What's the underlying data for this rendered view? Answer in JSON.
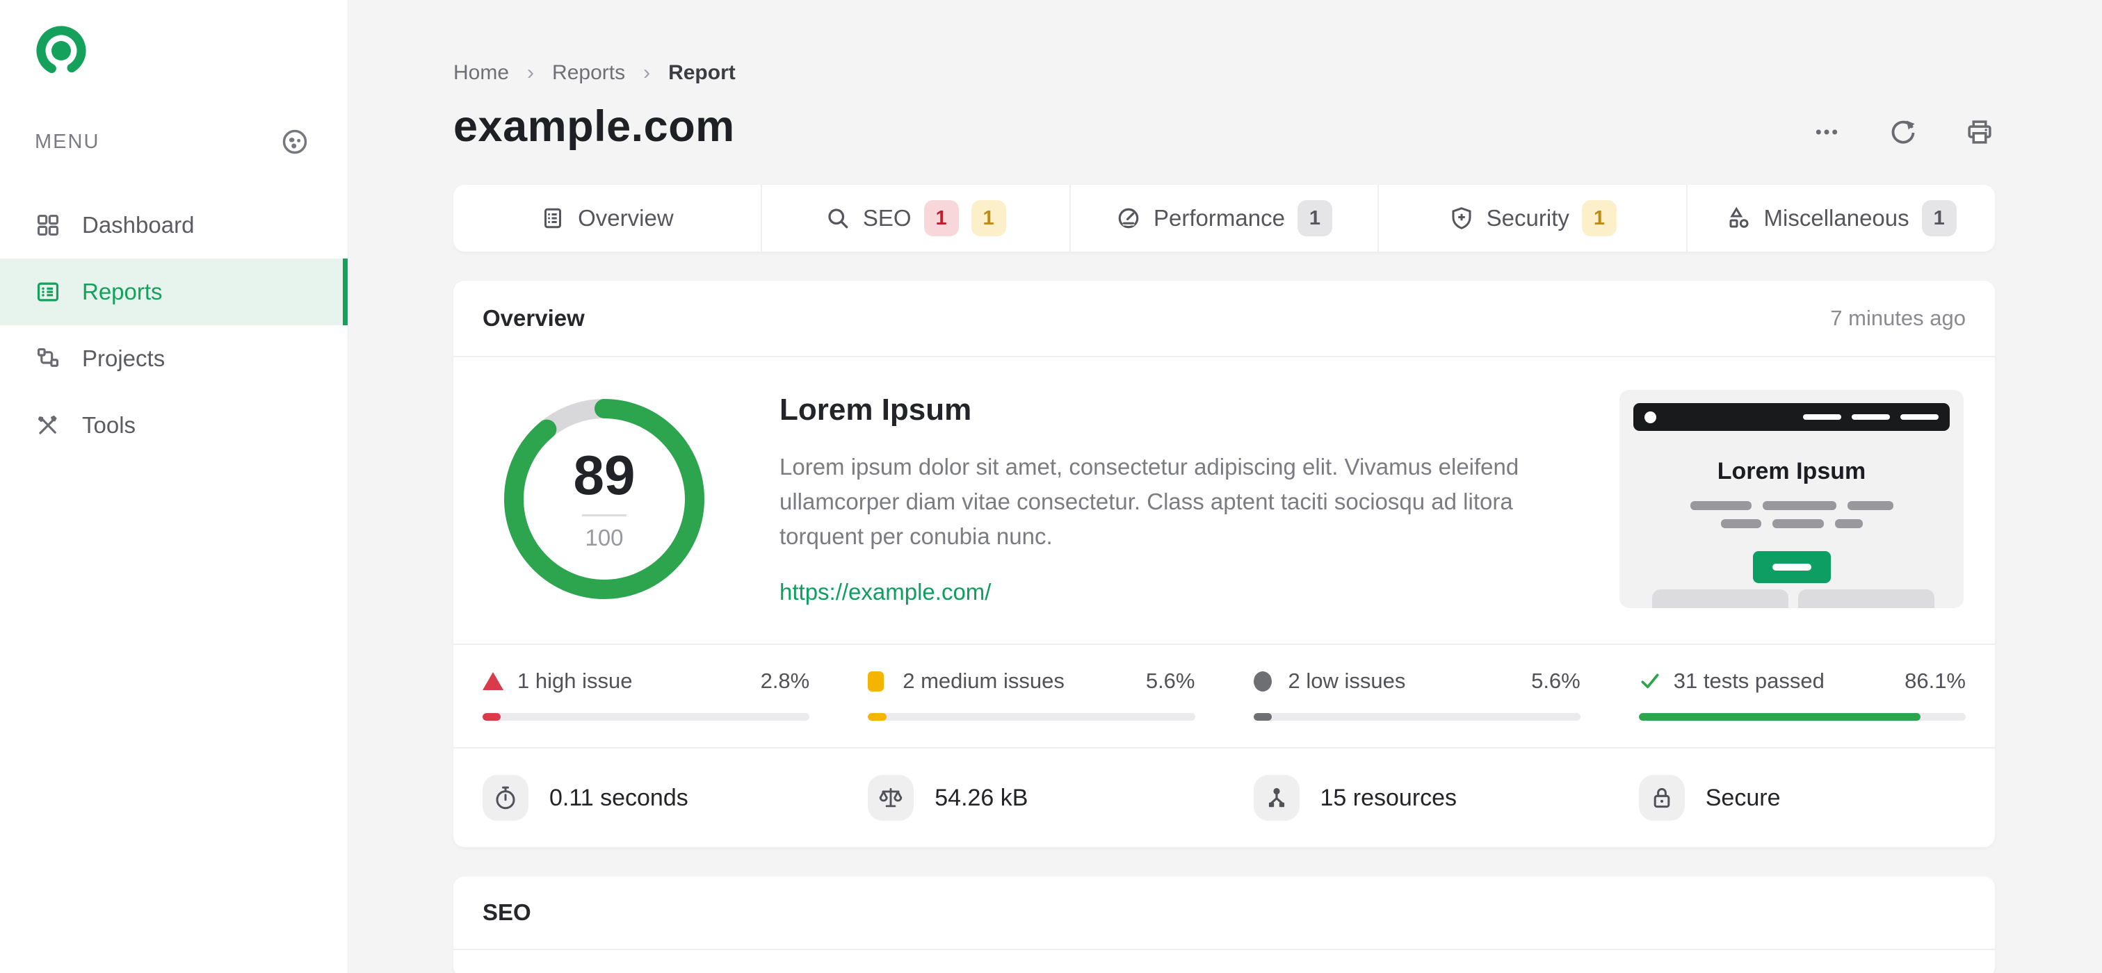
{
  "colors": {
    "brand_green": "#13a15b",
    "ring_green": "#2da44e",
    "link_green": "#0d9e60",
    "high_red": "#d93b4a",
    "medium_yellow": "#f5b400",
    "low_gray": "#6e6f73",
    "page_bg": "#f4f4f5",
    "active_item_bg": "#e7f3ed"
  },
  "sidebar": {
    "menu_label": "MENU",
    "items": [
      {
        "label": "Dashboard",
        "icon": "dashboard-grid-icon",
        "active": false
      },
      {
        "label": "Reports",
        "icon": "reports-list-icon",
        "active": true
      },
      {
        "label": "Projects",
        "icon": "projects-sitemap-icon",
        "active": false
      },
      {
        "label": "Tools",
        "icon": "tools-icon",
        "active": false
      }
    ]
  },
  "breadcrumb": {
    "items": [
      "Home",
      "Reports",
      "Report"
    ],
    "separator": "›"
  },
  "header": {
    "title": "example.com",
    "actions": [
      {
        "name": "more-options",
        "icon": "ellipsis-icon"
      },
      {
        "name": "refresh",
        "icon": "refresh-icon"
      },
      {
        "name": "print",
        "icon": "printer-icon"
      }
    ]
  },
  "tabs": [
    {
      "label": "Overview",
      "icon": "report-icon",
      "badges": []
    },
    {
      "label": "SEO",
      "icon": "search-icon",
      "badges": [
        {
          "text": "1",
          "type": "red"
        },
        {
          "text": "1",
          "type": "yellow"
        }
      ]
    },
    {
      "label": "Performance",
      "icon": "gauge-icon",
      "badges": [
        {
          "text": "1",
          "type": "gray"
        }
      ]
    },
    {
      "label": "Security",
      "icon": "shield-icon",
      "badges": [
        {
          "text": "1",
          "type": "yellow"
        }
      ]
    },
    {
      "label": "Miscellaneous",
      "icon": "shapes-icon",
      "badges": [
        {
          "text": "1",
          "type": "gray"
        }
      ]
    }
  ],
  "overview": {
    "section_title": "Overview",
    "updated": "7 minutes ago",
    "score": {
      "value": "89",
      "max": "100",
      "percent": 89
    },
    "summary": {
      "title": "Lorem Ipsum",
      "description": "Lorem ipsum dolor sit amet, consectetur adipiscing elit. Vivamus eleifend ullamcorper diam vitae consectetur. Class aptent taciti sociosqu ad litora torquent per conubia nunc.",
      "link": "https://example.com/"
    },
    "thumbnail": {
      "title": "Lorem Ipsum"
    },
    "stats": [
      {
        "label": "1 high issue",
        "percent_label": "2.8%",
        "percent": 2.8,
        "type": "high",
        "icon": "triangle-icon"
      },
      {
        "label": "2 medium issues",
        "percent_label": "5.6%",
        "percent": 5.6,
        "type": "medium",
        "icon": "square-icon"
      },
      {
        "label": "2 low issues",
        "percent_label": "5.6%",
        "percent": 5.6,
        "type": "low",
        "icon": "circle-icon"
      },
      {
        "label": "31 tests passed",
        "percent_label": "86.1%",
        "percent": 86.1,
        "type": "passed",
        "icon": "check-icon"
      }
    ],
    "metrics": [
      {
        "label": "0.11 seconds",
        "icon": "stopwatch-icon"
      },
      {
        "label": "54.26 kB",
        "icon": "scale-icon"
      },
      {
        "label": "15 resources",
        "icon": "resources-icon"
      },
      {
        "label": "Secure",
        "icon": "lock-icon"
      }
    ]
  },
  "seo_section": {
    "title": "SEO"
  }
}
